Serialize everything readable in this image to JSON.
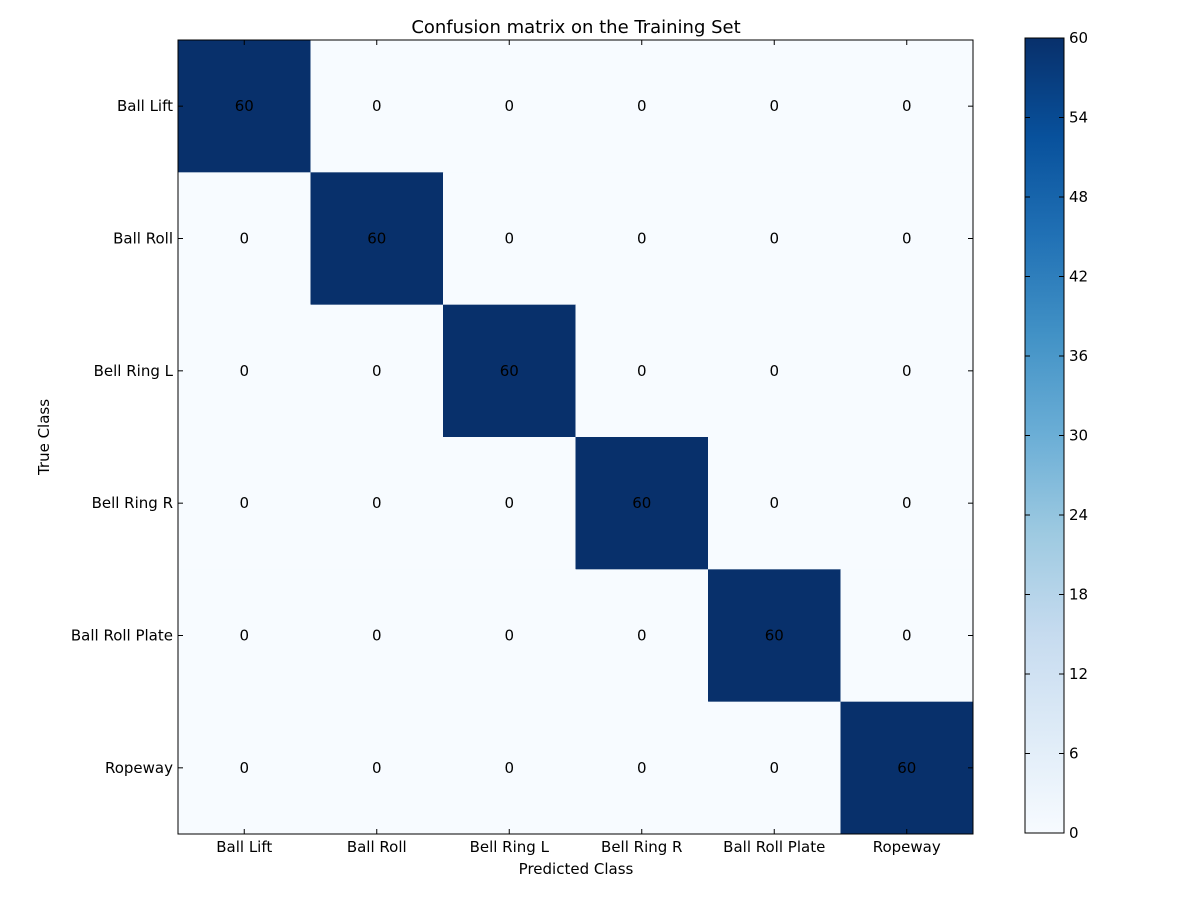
{
  "chart_data": {
    "type": "heatmap",
    "title": "Confusion matrix on the Training Set",
    "xlabel": "Predicted Class",
    "ylabel": "True Class",
    "x_categories": [
      "Ball Lift",
      "Ball Roll",
      "Bell Ring L",
      "Bell Ring R",
      "Ball Roll Plate",
      "Ropeway"
    ],
    "y_categories": [
      "Ball Lift",
      "Ball Roll",
      "Bell Ring L",
      "Bell Ring R",
      "Ball Roll Plate",
      "Ropeway"
    ],
    "matrix": [
      [
        60,
        0,
        0,
        0,
        0,
        0
      ],
      [
        0,
        60,
        0,
        0,
        0,
        0
      ],
      [
        0,
        0,
        60,
        0,
        0,
        0
      ],
      [
        0,
        0,
        0,
        60,
        0,
        0
      ],
      [
        0,
        0,
        0,
        0,
        60,
        0
      ],
      [
        0,
        0,
        0,
        0,
        0,
        60
      ]
    ],
    "colormap": "Blues",
    "colorbar": {
      "min": 0,
      "max": 60,
      "ticks": [
        0,
        6,
        12,
        18,
        24,
        30,
        36,
        42,
        48,
        54,
        60
      ]
    },
    "grid": false
  }
}
